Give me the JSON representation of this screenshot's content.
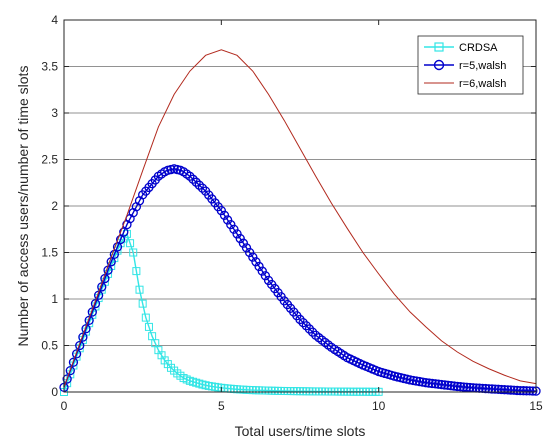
{
  "chart_data": {
    "type": "line",
    "xlabel": "Total users/time slots",
    "ylabel": "Number of access users/number of time slots",
    "xlim": [
      0,
      15
    ],
    "ylim": [
      0,
      4
    ],
    "xticks": [
      "0",
      "5",
      "10",
      "15"
    ],
    "yticks": [
      "0",
      "0.5",
      "1",
      "1.5",
      "2",
      "2.5",
      "3",
      "3.5",
      "4"
    ],
    "grid": "horizontal",
    "legend_position": "top-right",
    "series": [
      {
        "name": "CRDSA",
        "color": "#33e5e5",
        "marker": "square",
        "x": [
          0,
          0.2,
          0.4,
          0.6,
          0.8,
          1.0,
          1.2,
          1.4,
          1.6,
          1.8,
          2.0,
          2.2,
          2.4,
          2.6,
          2.8,
          3.0,
          3.2,
          3.4,
          3.6,
          3.8,
          4.0,
          4.2,
          4.4,
          4.6,
          4.8,
          5.0,
          5.2,
          5.4,
          5.6,
          5.8,
          6.0,
          6.2,
          6.4,
          6.6,
          6.8,
          7.0,
          7.2,
          7.4,
          7.6,
          7.8,
          8.0,
          8.2,
          8.4,
          8.6,
          8.8,
          9.0,
          9.2,
          9.4,
          9.6,
          9.8,
          10.0
        ],
        "y": [
          0,
          0.19,
          0.38,
          0.56,
          0.74,
          0.92,
          1.1,
          1.27,
          1.44,
          1.6,
          1.7,
          1.5,
          1.1,
          0.8,
          0.6,
          0.45,
          0.34,
          0.26,
          0.2,
          0.15,
          0.12,
          0.1,
          0.08,
          0.065,
          0.055,
          0.045,
          0.038,
          0.032,
          0.027,
          0.023,
          0.02,
          0.018,
          0.016,
          0.014,
          0.012,
          0.011,
          0.01,
          0.009,
          0.008,
          0.007,
          0.006,
          0.006,
          0.005,
          0.005,
          0.004,
          0.004,
          0.003,
          0.003,
          0.003,
          0.002,
          0.002
        ]
      },
      {
        "name": "r=5,walsh",
        "color": "#0000cc",
        "marker": "circle",
        "x": [
          0,
          0.5,
          1.0,
          1.5,
          2.0,
          2.5,
          3.0,
          3.25,
          3.5,
          3.75,
          4.0,
          4.5,
          5.0,
          5.5,
          6.0,
          6.5,
          7.0,
          7.5,
          8.0,
          8.5,
          9.0,
          9.5,
          10.0,
          10.5,
          11.0,
          11.5,
          12.0,
          12.5,
          13.0,
          13.5,
          14.0,
          14.5,
          15.0
        ],
        "y": [
          0.05,
          0.5,
          0.95,
          1.4,
          1.8,
          2.12,
          2.32,
          2.38,
          2.4,
          2.38,
          2.32,
          2.16,
          1.95,
          1.7,
          1.45,
          1.2,
          0.98,
          0.78,
          0.61,
          0.48,
          0.37,
          0.29,
          0.22,
          0.17,
          0.13,
          0.1,
          0.08,
          0.06,
          0.045,
          0.035,
          0.025,
          0.015,
          0.01
        ]
      },
      {
        "name": "r=6,walsh",
        "color": "#b22a1e",
        "marker": "none",
        "x": [
          0,
          0.5,
          1.0,
          1.5,
          2.0,
          2.5,
          3.0,
          3.5,
          4.0,
          4.5,
          5.0,
          5.5,
          6.0,
          6.5,
          7.0,
          7.5,
          8.0,
          8.5,
          9.0,
          9.5,
          10.0,
          10.5,
          11.0,
          11.5,
          12.0,
          12.5,
          13.0,
          13.5,
          14.0,
          14.5,
          15.0
        ],
        "y": [
          0.05,
          0.52,
          0.98,
          1.45,
          1.9,
          2.38,
          2.85,
          3.2,
          3.45,
          3.62,
          3.68,
          3.62,
          3.45,
          3.2,
          2.92,
          2.62,
          2.32,
          2.03,
          1.76,
          1.5,
          1.27,
          1.05,
          0.86,
          0.7,
          0.55,
          0.43,
          0.33,
          0.25,
          0.18,
          0.12,
          0.09
        ]
      }
    ]
  }
}
